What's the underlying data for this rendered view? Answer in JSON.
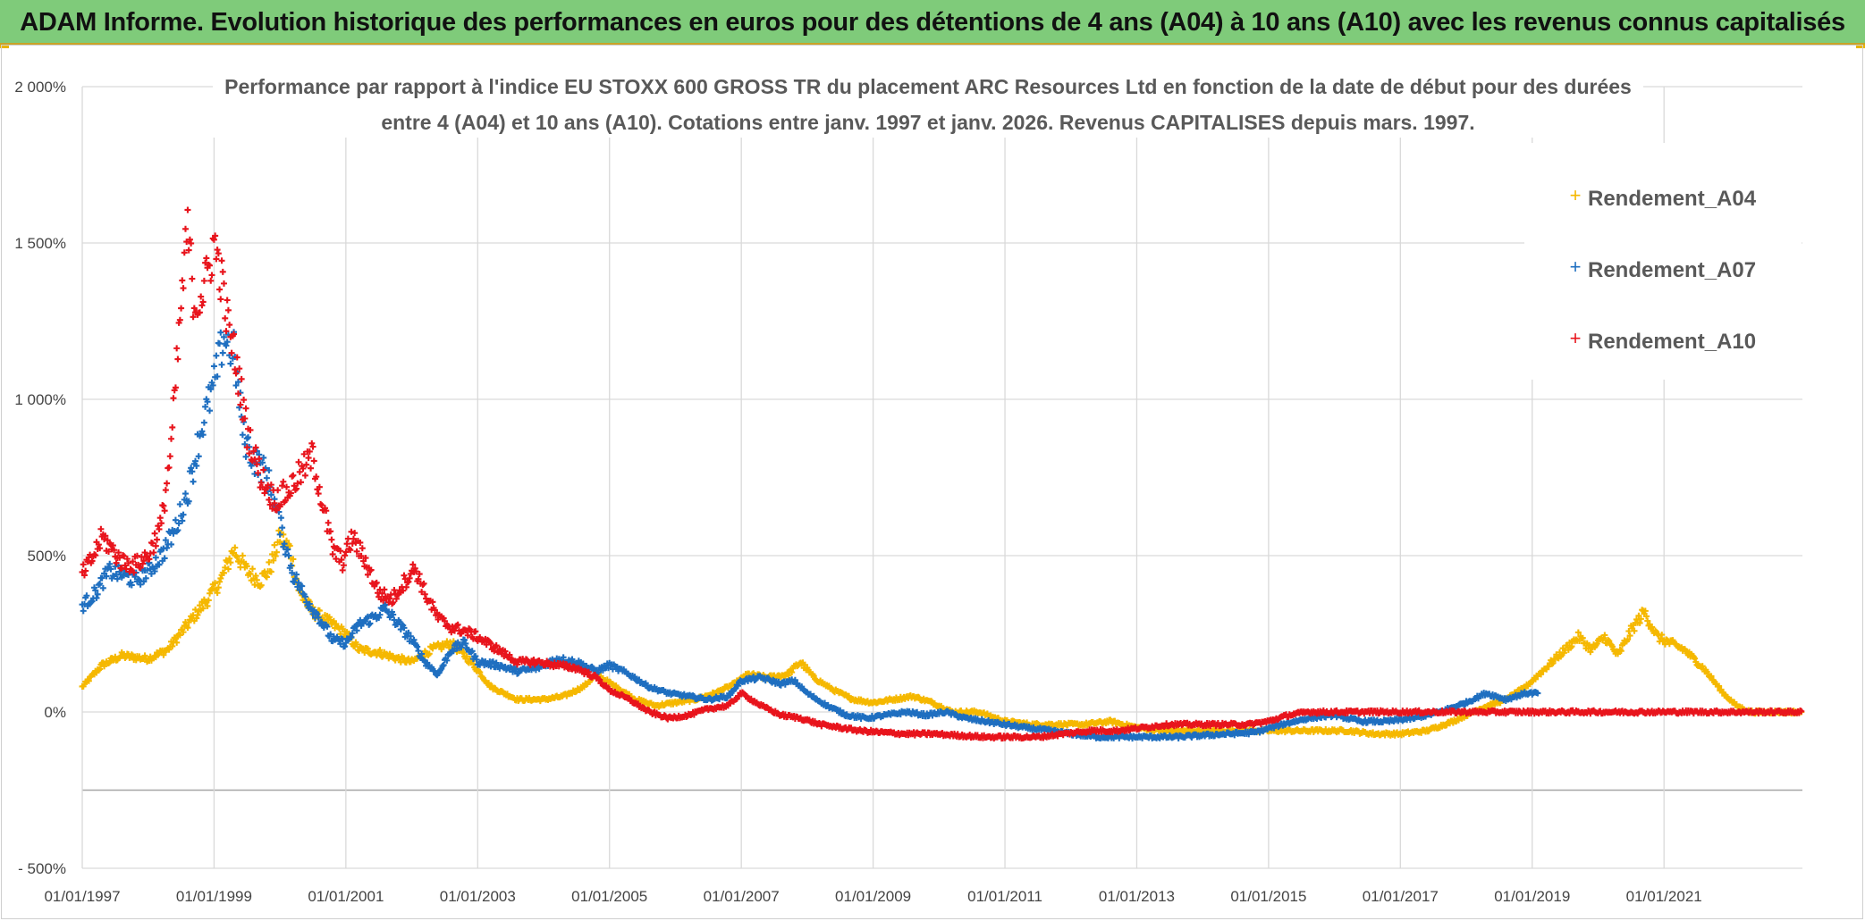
{
  "banner": {
    "title": "ADAM Informe. Evolution historique des performances en euros pour des détentions de 4 ans (A04) à 10 ans (A10) avec les revenus connus capitalisés"
  },
  "colors": {
    "banner_bg": "#7fcb7a",
    "A04": "#f5b800",
    "A07": "#1f6fc0",
    "A10": "#e8141c",
    "grid": "#d9d9d9"
  },
  "chart_data": {
    "type": "scatter",
    "title_line1": "Performance par rapport à l'indice EU STOXX 600 GROSS TR  du placement ARC Resources Ltd en fonction de la date de début pour des durées",
    "title_line2": "entre 4 (A04) et 10 ans (A10). Cotations entre janv. 1997 et janv. 2026. Revenus CAPITALISES depuis mars. 1997.",
    "xlabel": "",
    "ylabel": "",
    "x_range": [
      1997.0,
      2023.1
    ],
    "ylim": [
      -500,
      2000
    ],
    "y_ticks": [
      {
        "v": 2000,
        "label": "2 000%"
      },
      {
        "v": 1500,
        "label": "1 500%"
      },
      {
        "v": 1000,
        "label": "1 000%"
      },
      {
        "v": 500,
        "label": "500%"
      },
      {
        "v": 0,
        "label": "0%"
      },
      {
        "v": -500,
        "label": "- 500%"
      }
    ],
    "x_ticks": [
      {
        "v": 1997,
        "label": "01/01/1997"
      },
      {
        "v": 1999,
        "label": "01/01/1999"
      },
      {
        "v": 2001,
        "label": "01/01/2001"
      },
      {
        "v": 2003,
        "label": "01/01/2003"
      },
      {
        "v": 2005,
        "label": "01/01/2005"
      },
      {
        "v": 2007,
        "label": "01/01/2007"
      },
      {
        "v": 2009,
        "label": "01/01/2009"
      },
      {
        "v": 2011,
        "label": "01/01/2011"
      },
      {
        "v": 2013,
        "label": "01/01/2013"
      },
      {
        "v": 2015,
        "label": "01/01/2015"
      },
      {
        "v": 2017,
        "label": "01/01/2017"
      },
      {
        "v": 2019,
        "label": "01/01/2019"
      },
      {
        "v": 2021,
        "label": "01/01/2021"
      }
    ],
    "extra_gridline": -250,
    "legend_position": "top-right",
    "series": [
      {
        "name": "Rendement_A04",
        "color": "#f5b800",
        "points": [
          [
            1997.0,
            80
          ],
          [
            1997.3,
            150
          ],
          [
            1997.6,
            180
          ],
          [
            1998.0,
            170
          ],
          [
            1998.3,
            200
          ],
          [
            1998.6,
            280
          ],
          [
            1998.9,
            360
          ],
          [
            1999.1,
            420
          ],
          [
            1999.3,
            520
          ],
          [
            1999.5,
            450
          ],
          [
            1999.7,
            420
          ],
          [
            1999.85,
            460
          ],
          [
            2000.0,
            560
          ],
          [
            2000.15,
            520
          ],
          [
            2000.3,
            380
          ],
          [
            2000.5,
            320
          ],
          [
            2000.8,
            280
          ],
          [
            2001.0,
            250
          ],
          [
            2001.2,
            200
          ],
          [
            2001.5,
            190
          ],
          [
            2001.8,
            170
          ],
          [
            2002.0,
            160
          ],
          [
            2002.3,
            200
          ],
          [
            2002.6,
            220
          ],
          [
            2002.9,
            160
          ],
          [
            2003.2,
            80
          ],
          [
            2003.6,
            40
          ],
          [
            2004.0,
            40
          ],
          [
            2004.3,
            50
          ],
          [
            2004.6,
            80
          ],
          [
            2004.8,
            120
          ],
          [
            2005.1,
            80
          ],
          [
            2005.4,
            40
          ],
          [
            2005.7,
            20
          ],
          [
            2006.0,
            30
          ],
          [
            2006.3,
            40
          ],
          [
            2006.6,
            60
          ],
          [
            2006.9,
            90
          ],
          [
            2007.1,
            120
          ],
          [
            2007.4,
            110
          ],
          [
            2007.7,
            120
          ],
          [
            2007.9,
            160
          ],
          [
            2008.1,
            110
          ],
          [
            2008.4,
            70
          ],
          [
            2008.7,
            40
          ],
          [
            2009.0,
            30
          ],
          [
            2009.3,
            40
          ],
          [
            2009.6,
            50
          ],
          [
            2009.9,
            30
          ],
          [
            2010.2,
            0
          ],
          [
            2010.6,
            0
          ],
          [
            2011.0,
            -30
          ],
          [
            2011.4,
            -40
          ],
          [
            2011.8,
            -40
          ],
          [
            2012.2,
            -40
          ],
          [
            2012.6,
            -30
          ],
          [
            2013.0,
            -50
          ],
          [
            2013.4,
            -60
          ],
          [
            2013.8,
            -60
          ],
          [
            2014.2,
            -60
          ],
          [
            2014.6,
            -60
          ],
          [
            2015.0,
            -60
          ],
          [
            2015.4,
            -60
          ],
          [
            2015.8,
            -60
          ],
          [
            2016.2,
            -60
          ],
          [
            2016.6,
            -70
          ],
          [
            2017.0,
            -70
          ],
          [
            2017.4,
            -60
          ],
          [
            2017.8,
            -30
          ],
          [
            2018.2,
            10
          ],
          [
            2018.6,
            40
          ],
          [
            2018.9,
            80
          ],
          [
            2019.1,
            120
          ],
          [
            2019.4,
            180
          ],
          [
            2019.7,
            240
          ],
          [
            2019.9,
            200
          ],
          [
            2020.1,
            240
          ],
          [
            2020.3,
            180
          ],
          [
            2020.5,
            260
          ],
          [
            2020.7,
            320
          ],
          [
            2020.9,
            240
          ],
          [
            2021.1,
            220
          ],
          [
            2021.3,
            200
          ],
          [
            2021.6,
            140
          ],
          [
            2021.9,
            60
          ],
          [
            2022.1,
            20
          ],
          [
            2022.3,
            0
          ],
          [
            2022.6,
            0
          ],
          [
            2022.9,
            0
          ],
          [
            2023.1,
            0
          ]
        ]
      },
      {
        "name": "Rendement_A07",
        "color": "#1f6fc0",
        "points": [
          [
            1997.0,
            340
          ],
          [
            1997.2,
            380
          ],
          [
            1997.4,
            450
          ],
          [
            1997.6,
            440
          ],
          [
            1997.8,
            420
          ],
          [
            1998.0,
            450
          ],
          [
            1998.2,
            500
          ],
          [
            1998.4,
            580
          ],
          [
            1998.6,
            700
          ],
          [
            1998.8,
            900
          ],
          [
            1999.0,
            1050
          ],
          [
            1999.15,
            1200
          ],
          [
            1999.3,
            1150
          ],
          [
            1999.45,
            880
          ],
          [
            1999.6,
            810
          ],
          [
            1999.8,
            760
          ],
          [
            2000.0,
            600
          ],
          [
            2000.2,
            440
          ],
          [
            2000.4,
            360
          ],
          [
            2000.6,
            300
          ],
          [
            2000.8,
            230
          ],
          [
            2001.0,
            220
          ],
          [
            2001.2,
            280
          ],
          [
            2001.4,
            300
          ],
          [
            2001.6,
            330
          ],
          [
            2001.8,
            280
          ],
          [
            2002.0,
            230
          ],
          [
            2002.2,
            160
          ],
          [
            2002.4,
            120
          ],
          [
            2002.6,
            200
          ],
          [
            2002.8,
            220
          ],
          [
            2003.0,
            160
          ],
          [
            2003.3,
            150
          ],
          [
            2003.6,
            130
          ],
          [
            2003.9,
            140
          ],
          [
            2004.2,
            170
          ],
          [
            2004.5,
            160
          ],
          [
            2004.8,
            130
          ],
          [
            2005.0,
            150
          ],
          [
            2005.3,
            120
          ],
          [
            2005.6,
            80
          ],
          [
            2005.9,
            60
          ],
          [
            2006.2,
            50
          ],
          [
            2006.5,
            40
          ],
          [
            2006.8,
            50
          ],
          [
            2007.0,
            100
          ],
          [
            2007.3,
            110
          ],
          [
            2007.6,
            90
          ],
          [
            2007.8,
            100
          ],
          [
            2008.0,
            60
          ],
          [
            2008.3,
            20
          ],
          [
            2008.6,
            -10
          ],
          [
            2008.9,
            -20
          ],
          [
            2009.2,
            -10
          ],
          [
            2009.5,
            0
          ],
          [
            2009.8,
            -10
          ],
          [
            2010.1,
            0
          ],
          [
            2010.4,
            -20
          ],
          [
            2010.7,
            -30
          ],
          [
            2011.0,
            -40
          ],
          [
            2011.3,
            -50
          ],
          [
            2011.7,
            -60
          ],
          [
            2012.0,
            -70
          ],
          [
            2012.4,
            -80
          ],
          [
            2012.8,
            -80
          ],
          [
            2013.2,
            -80
          ],
          [
            2013.6,
            -80
          ],
          [
            2014.0,
            -75
          ],
          [
            2014.4,
            -70
          ],
          [
            2014.8,
            -65
          ],
          [
            2015.2,
            -40
          ],
          [
            2015.6,
            -20
          ],
          [
            2016.0,
            -10
          ],
          [
            2016.4,
            -30
          ],
          [
            2016.8,
            -30
          ],
          [
            2017.2,
            -20
          ],
          [
            2017.6,
            0
          ],
          [
            2018.0,
            30
          ],
          [
            2018.3,
            60
          ],
          [
            2018.6,
            40
          ],
          [
            2018.9,
            60
          ],
          [
            2019.1,
            60
          ]
        ]
      },
      {
        "name": "Rendement_A10",
        "color": "#e8141c",
        "points": [
          [
            1997.0,
            440
          ],
          [
            1997.15,
            490
          ],
          [
            1997.3,
            560
          ],
          [
            1997.45,
            520
          ],
          [
            1997.6,
            480
          ],
          [
            1997.8,
            470
          ],
          [
            1998.0,
            500
          ],
          [
            1998.2,
            600
          ],
          [
            1998.35,
            850
          ],
          [
            1998.5,
            1300
          ],
          [
            1998.6,
            1550
          ],
          [
            1998.7,
            1300
          ],
          [
            1998.85,
            1350
          ],
          [
            1999.0,
            1500
          ],
          [
            1999.1,
            1400
          ],
          [
            1999.2,
            1250
          ],
          [
            1999.35,
            1100
          ],
          [
            1999.5,
            900
          ],
          [
            1999.7,
            760
          ],
          [
            1999.9,
            680
          ],
          [
            2000.1,
            700
          ],
          [
            2000.3,
            760
          ],
          [
            2000.5,
            820
          ],
          [
            2000.65,
            660
          ],
          [
            2000.8,
            520
          ],
          [
            2000.95,
            480
          ],
          [
            2001.1,
            560
          ],
          [
            2001.3,
            480
          ],
          [
            2001.5,
            380
          ],
          [
            2001.7,
            360
          ],
          [
            2001.9,
            420
          ],
          [
            2002.05,
            460
          ],
          [
            2002.2,
            380
          ],
          [
            2002.4,
            300
          ],
          [
            2002.6,
            270
          ],
          [
            2002.8,
            260
          ],
          [
            2003.0,
            240
          ],
          [
            2003.3,
            200
          ],
          [
            2003.6,
            160
          ],
          [
            2003.9,
            160
          ],
          [
            2004.2,
            150
          ],
          [
            2004.5,
            140
          ],
          [
            2004.8,
            110
          ],
          [
            2005.0,
            70
          ],
          [
            2005.3,
            40
          ],
          [
            2005.6,
            0
          ],
          [
            2005.9,
            -20
          ],
          [
            2006.2,
            -10
          ],
          [
            2006.5,
            10
          ],
          [
            2006.8,
            20
          ],
          [
            2007.0,
            60
          ],
          [
            2007.3,
            20
          ],
          [
            2007.6,
            -10
          ],
          [
            2007.9,
            -20
          ],
          [
            2008.2,
            -40
          ],
          [
            2008.5,
            -50
          ],
          [
            2008.8,
            -60
          ],
          [
            2009.1,
            -65
          ],
          [
            2009.5,
            -70
          ],
          [
            2009.9,
            -70
          ],
          [
            2010.3,
            -75
          ],
          [
            2010.7,
            -80
          ],
          [
            2011.1,
            -80
          ],
          [
            2011.5,
            -80
          ],
          [
            2011.9,
            -70
          ],
          [
            2012.3,
            -60
          ],
          [
            2012.7,
            -60
          ],
          [
            2013.1,
            -50
          ],
          [
            2013.5,
            -40
          ],
          [
            2013.9,
            -40
          ],
          [
            2014.3,
            -40
          ],
          [
            2014.7,
            -40
          ],
          [
            2015.0,
            -30
          ],
          [
            2015.3,
            -10
          ],
          [
            2015.6,
            0
          ],
          [
            2016.0,
            0
          ],
          [
            2016.5,
            0
          ],
          [
            2017.0,
            0
          ],
          [
            2017.5,
            0
          ],
          [
            2018.0,
            0
          ],
          [
            2018.5,
            0
          ],
          [
            2019.0,
            0
          ],
          [
            2019.5,
            0
          ],
          [
            2020.0,
            0
          ],
          [
            2020.5,
            0
          ],
          [
            2021.0,
            0
          ],
          [
            2021.5,
            0
          ],
          [
            2022.0,
            0
          ],
          [
            2022.5,
            0
          ],
          [
            2023.1,
            0
          ]
        ]
      }
    ]
  }
}
